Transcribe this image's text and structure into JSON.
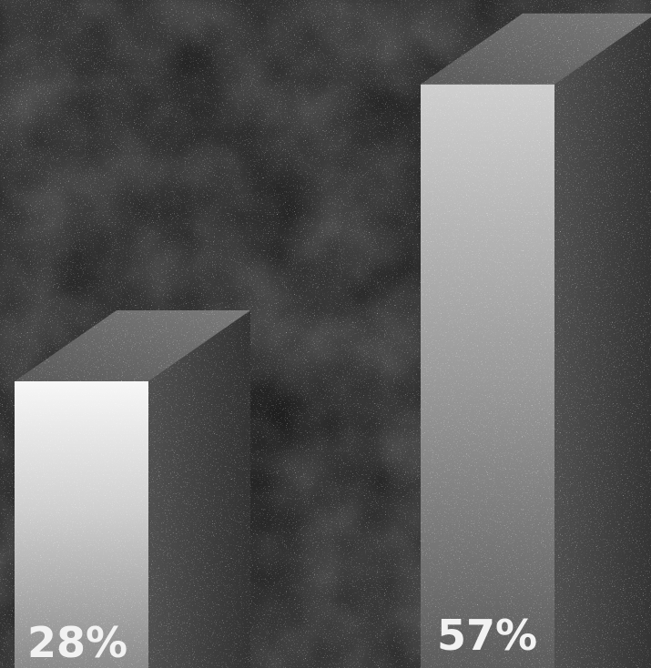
{
  "chart_data": {
    "type": "bar",
    "style": "3d",
    "categories": [
      "",
      ""
    ],
    "values": [
      28,
      57
    ],
    "labels": [
      "28%",
      "57%"
    ],
    "unit": "%",
    "title": "",
    "xlabel": "",
    "ylabel": "",
    "grid": false,
    "legend": "none"
  },
  "colors": {
    "background": "#1a1a1a",
    "bar_front_top": "#f5f5f5",
    "bar_front_bottom": "#8c8c8c",
    "bar_side": "#4a4a4a",
    "bar_top": "#6e6e6e",
    "label": "#f2f2f2"
  }
}
